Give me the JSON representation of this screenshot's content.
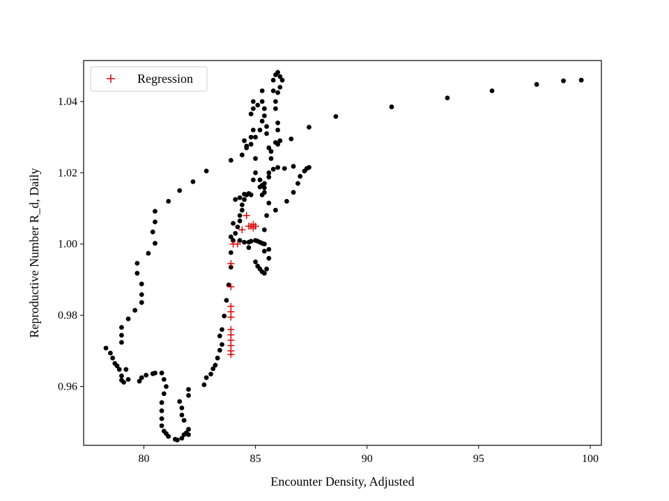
{
  "chart_data": {
    "type": "scatter",
    "title": "",
    "xlabel": "Encounter Density, Adjusted",
    "ylabel": "Reproductive Number R_d, Daily",
    "xlim": [
      77.3,
      100.5
    ],
    "ylim": [
      0.9435,
      1.0515
    ],
    "xticks": [
      80,
      85,
      90,
      95,
      100
    ],
    "yticks": [
      0.96,
      0.98,
      1.0,
      1.02,
      1.04
    ],
    "ytick_labels": [
      "0.96",
      "0.98",
      "1.00",
      "1.02",
      "1.04"
    ],
    "grid": false,
    "legend": {
      "position": "top-left",
      "entries": [
        "Regression"
      ]
    },
    "colors": {
      "observed": "#000000",
      "regression": "#e00000"
    },
    "series": [
      {
        "marker": "dot",
        "points": [
          [
            78.3,
            0.9708
          ],
          [
            78.5,
            0.9694
          ],
          [
            78.6,
            0.968
          ],
          [
            78.7,
            0.9665
          ],
          [
            78.8,
            0.9658
          ],
          [
            78.9,
            0.9648
          ],
          [
            79.0,
            0.963
          ],
          [
            79.1,
            0.9612
          ],
          [
            79.2,
            0.9648
          ],
          [
            79.0,
            0.9724
          ],
          [
            79.0,
            0.9744
          ],
          [
            79.0,
            0.9766
          ],
          [
            79.3,
            0.979
          ],
          [
            79.6,
            0.9814
          ],
          [
            79.9,
            0.9836
          ],
          [
            79.9,
            0.9858
          ],
          [
            79.9,
            0.9888
          ],
          [
            79.7,
            0.9918
          ],
          [
            79.7,
            0.9946
          ],
          [
            79.0,
            0.9618
          ],
          [
            79.3,
            0.962
          ],
          [
            79.8,
            0.9615
          ],
          [
            79.9,
            0.9625
          ],
          [
            80.1,
            0.9632
          ],
          [
            80.4,
            0.9636
          ],
          [
            80.5,
            0.9638
          ],
          [
            80.8,
            0.9638
          ],
          [
            80.9,
            0.962
          ],
          [
            81.0,
            0.96
          ],
          [
            80.9,
            0.958
          ],
          [
            80.8,
            0.9555
          ],
          [
            80.8,
            0.9532
          ],
          [
            80.8,
            0.951
          ],
          [
            80.8,
            0.949
          ],
          [
            80.9,
            0.9475
          ],
          [
            81.0,
            0.9468
          ],
          [
            81.1,
            0.946
          ],
          [
            81.4,
            0.9452
          ],
          [
            81.5,
            0.945
          ],
          [
            81.7,
            0.9455
          ],
          [
            81.8,
            0.9465
          ],
          [
            81.9,
            0.947
          ],
          [
            82.0,
            0.9465
          ],
          [
            82.0,
            0.948
          ],
          [
            81.8,
            0.9505
          ],
          [
            81.7,
            0.952
          ],
          [
            81.7,
            0.954
          ],
          [
            81.6,
            0.9558
          ],
          [
            82.0,
            0.9575
          ],
          [
            82.0,
            0.9592
          ],
          [
            82.7,
            0.9605
          ],
          [
            82.8,
            0.9625
          ],
          [
            83.0,
            0.9635
          ],
          [
            83.1,
            0.965
          ],
          [
            83.2,
            0.966
          ],
          [
            83.3,
            0.968
          ],
          [
            83.4,
            0.9702
          ],
          [
            83.5,
            0.9718
          ],
          [
            83.4,
            0.9742
          ],
          [
            83.5,
            0.976
          ],
          [
            83.6,
            0.9798
          ],
          [
            83.7,
            0.9842
          ],
          [
            83.8,
            0.9885
          ],
          [
            83.9,
            0.9935
          ],
          [
            83.9,
            0.9976
          ],
          [
            84.0,
            1.001
          ],
          [
            84.1,
            1.003
          ],
          [
            84.2,
            1.0048
          ],
          [
            83.9,
            1.002
          ],
          [
            84.0,
            1.0058
          ],
          [
            84.3,
            1.0065
          ],
          [
            84.3,
            1.008
          ],
          [
            84.4,
            1.0095
          ],
          [
            84.4,
            1.011
          ],
          [
            84.5,
            1.0125
          ],
          [
            84.6,
            1.0138
          ],
          [
            84.7,
            1.0142
          ],
          [
            84.8,
            1.0138
          ],
          [
            84.3,
            1.001
          ],
          [
            84.5,
            1.0005
          ],
          [
            84.7,
            1.0005
          ],
          [
            84.8,
            1.0008
          ],
          [
            85.0,
            1.001
          ],
          [
            85.1,
            1.0008
          ],
          [
            85.2,
            1.0005
          ],
          [
            85.3,
            1.0002
          ],
          [
            85.4,
            1.0
          ],
          [
            85.4,
            0.998
          ],
          [
            84.7,
            0.999
          ],
          [
            85.0,
            0.995
          ],
          [
            85.1,
            0.9938
          ],
          [
            85.2,
            0.993
          ],
          [
            85.3,
            0.9922
          ],
          [
            85.4,
            0.9918
          ],
          [
            85.5,
            0.993
          ],
          [
            85.6,
            0.996
          ],
          [
            85.6,
            0.9985
          ],
          [
            85.4,
            1.004
          ],
          [
            85.5,
            1.008
          ],
          [
            85.6,
            1.0115
          ],
          [
            85.2,
            1.016
          ],
          [
            85.3,
            1.0165
          ],
          [
            85.4,
            1.017
          ],
          [
            85.6,
            1.0188
          ],
          [
            85.8,
            1.021
          ],
          [
            86.0,
            1.0215
          ],
          [
            86.3,
            1.0212
          ],
          [
            86.7,
            1.0218
          ],
          [
            85.3,
            1.0138
          ],
          [
            85.4,
            1.0145
          ],
          [
            85.4,
            1.0158
          ],
          [
            85.6,
            1.02
          ],
          [
            85.7,
            1.024
          ],
          [
            85.9,
            1.0095
          ],
          [
            86.4,
            1.012
          ],
          [
            86.7,
            1.0145
          ],
          [
            86.9,
            1.017
          ],
          [
            87.0,
            1.019
          ],
          [
            87.2,
            1.0205
          ],
          [
            87.3,
            1.0212
          ],
          [
            87.4,
            1.0215
          ],
          [
            84.1,
            1.0125
          ],
          [
            84.3,
            1.013
          ],
          [
            84.5,
            1.014
          ],
          [
            84.9,
            1.018
          ],
          [
            85.0,
            1.02
          ],
          [
            85.2,
            1.018
          ],
          [
            85.0,
            1.024
          ],
          [
            84.6,
            1.027
          ],
          [
            84.8,
            1.028
          ],
          [
            85.0,
            1.03
          ],
          [
            85.2,
            1.032
          ],
          [
            85.3,
            1.0345
          ],
          [
            85.4,
            1.036
          ],
          [
            85.5,
            1.033
          ],
          [
            85.5,
            1.031
          ],
          [
            85.6,
            1.027
          ],
          [
            85.7,
            1.026
          ],
          [
            85.9,
            1.0285
          ],
          [
            86.0,
            1.028
          ],
          [
            86.1,
            1.029
          ],
          [
            86.0,
            1.032
          ],
          [
            86.0,
            1.034
          ],
          [
            85.9,
            1.038
          ],
          [
            85.9,
            1.04
          ],
          [
            85.8,
            1.043
          ],
          [
            85.8,
            1.046
          ],
          [
            85.9,
            1.0475
          ],
          [
            86.0,
            1.0482
          ],
          [
            86.1,
            1.047
          ],
          [
            86.2,
            1.046
          ],
          [
            86.1,
            1.044
          ],
          [
            86.0,
            1.0425
          ],
          [
            85.3,
            1.043
          ],
          [
            85.3,
            1.04
          ],
          [
            85.4,
            1.038
          ],
          [
            85.1,
            1.039
          ],
          [
            84.9,
            1.038
          ],
          [
            84.9,
            1.04
          ],
          [
            84.8,
            1.0365
          ],
          [
            84.9,
            1.032
          ],
          [
            84.8,
            1.03
          ],
          [
            84.5,
            1.029
          ],
          [
            84.6,
            1.0275
          ],
          [
            84.4,
            1.025
          ],
          [
            83.9,
            1.0235
          ],
          [
            82.8,
            1.0205
          ],
          [
            82.2,
            1.0175
          ],
          [
            81.6,
            1.015
          ],
          [
            81.1,
            1.012
          ],
          [
            80.5,
            1.0092
          ],
          [
            80.5,
            1.0062
          ],
          [
            80.4,
            1.0034
          ],
          [
            80.5,
            1.0002
          ],
          [
            80.2,
            0.9974
          ],
          [
            86.6,
            1.0295
          ],
          [
            87.4,
            1.0328
          ],
          [
            88.6,
            1.0358
          ],
          [
            91.1,
            1.0385
          ],
          [
            93.6,
            1.041
          ],
          [
            95.6,
            1.043
          ],
          [
            97.6,
            1.0448
          ],
          [
            98.8,
            1.0458
          ],
          [
            99.6,
            1.046
          ]
        ]
      },
      {
        "name": "Regression",
        "marker": "plus",
        "points": [
          [
            84.6,
            1.008
          ],
          [
            84.8,
            1.005
          ],
          [
            84.9,
            1.0055
          ],
          [
            85.0,
            1.005
          ],
          [
            84.7,
            1.005
          ],
          [
            84.9,
            1.0045
          ],
          [
            84.4,
            1.004
          ],
          [
            84.2,
            1.0
          ],
          [
            84.0,
            1.0
          ],
          [
            83.9,
            0.9945
          ],
          [
            83.9,
            0.988
          ],
          [
            83.9,
            0.9825
          ],
          [
            83.9,
            0.981
          ],
          [
            83.9,
            0.9795
          ],
          [
            83.9,
            0.976
          ],
          [
            83.9,
            0.9745
          ],
          [
            83.9,
            0.973
          ],
          [
            83.9,
            0.9715
          ],
          [
            83.9,
            0.97
          ],
          [
            83.9,
            0.969
          ]
        ]
      }
    ]
  }
}
